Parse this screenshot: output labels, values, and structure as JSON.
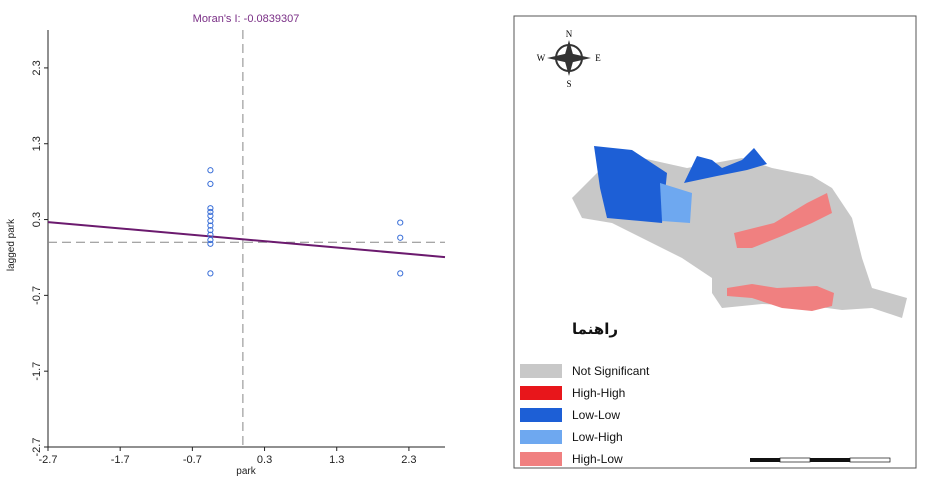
{
  "chart_data": {
    "type": "scatter",
    "title": "Moran's I: -0.0839307",
    "xlabel": "park",
    "ylabel": "lagged park",
    "xlim": [
      -2.7,
      2.8
    ],
    "ylim": [
      -2.7,
      2.8
    ],
    "xticks": [
      -2.7,
      -1.7,
      -0.7,
      0.3,
      1.3,
      2.3
    ],
    "yticks": [
      -2.7,
      -1.7,
      -0.7,
      0.3,
      1.3,
      2.3
    ],
    "mean_lines": {
      "x": 0,
      "y": 0
    },
    "regression_line": {
      "slope": -0.0839307,
      "intercept": 0.04
    },
    "points": [
      {
        "x": -0.45,
        "y": 0.95
      },
      {
        "x": -0.45,
        "y": 0.77
      },
      {
        "x": -0.45,
        "y": 0.45
      },
      {
        "x": -0.45,
        "y": 0.4
      },
      {
        "x": -0.45,
        "y": 0.35
      },
      {
        "x": -0.45,
        "y": 0.28
      },
      {
        "x": -0.45,
        "y": 0.22
      },
      {
        "x": -0.45,
        "y": 0.16
      },
      {
        "x": -0.45,
        "y": 0.1
      },
      {
        "x": -0.45,
        "y": 0.03
      },
      {
        "x": -0.45,
        "y": -0.02
      },
      {
        "x": -0.45,
        "y": -0.41
      },
      {
        "x": 2.18,
        "y": 0.26
      },
      {
        "x": 2.18,
        "y": 0.06
      },
      {
        "x": 2.18,
        "y": -0.41
      }
    ],
    "grid": false,
    "colors": {
      "points": "#3a6fd8",
      "regression": "#6b1a6e",
      "title": "#7a2f86",
      "mean_lines": "#888888"
    }
  },
  "map": {
    "legend_title": "راهنما",
    "legend_items": [
      {
        "label": "Not Significant",
        "color": "#c8c8c8"
      },
      {
        "label": "High-High",
        "color": "#e8161b"
      },
      {
        "label": "Low-Low",
        "color": "#1d5fd6"
      },
      {
        "label": "Low-High",
        "color": "#6ea8f0"
      },
      {
        "label": "High-Low",
        "color": "#f08080"
      }
    ],
    "north_arrow_labels": {
      "n": "N",
      "s": "S",
      "e": "E",
      "w": "W"
    }
  }
}
